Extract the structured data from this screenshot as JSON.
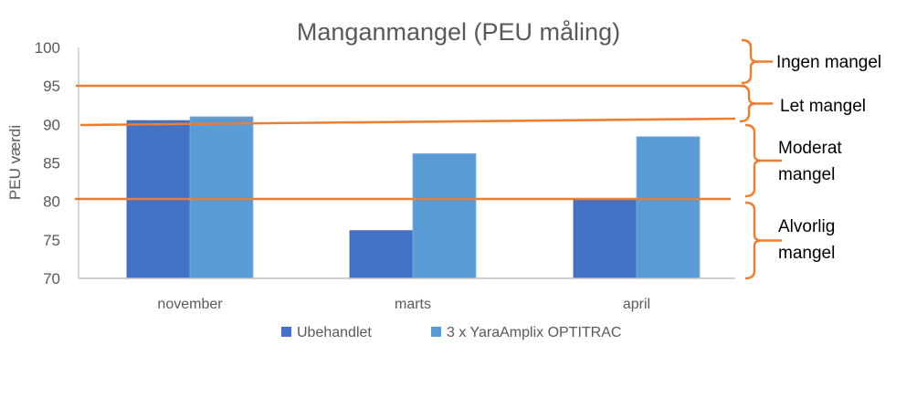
{
  "chart_data": {
    "type": "bar",
    "title": "Manganmangel (PEU måling)",
    "xlabel": "",
    "ylabel": "PEU værdi",
    "ylim": [
      70,
      100
    ],
    "yticks": [
      100,
      95,
      90,
      85,
      80,
      75,
      70
    ],
    "grid": false,
    "legend_position": "bottom",
    "categories": [
      "november",
      "marts",
      "april"
    ],
    "series": [
      {
        "name": "Ubehandlet",
        "color": "#4472C4",
        "values": [
          90.5,
          76.2,
          80.3
        ]
      },
      {
        "name": "3 x YaraAmplix OPTITRAC",
        "color": "#5B9BD5",
        "values": [
          91.0,
          86.2,
          88.4
        ]
      }
    ],
    "threshold_lines": [
      {
        "value": 95,
        "color": "#ED7D31"
      },
      {
        "value": 90,
        "color": "#ED7D31"
      },
      {
        "value": 80,
        "color": "#ED7D31"
      }
    ],
    "annotations": [
      {
        "label_lines": [
          "Ingen mangel"
        ],
        "range": [
          95,
          100
        ]
      },
      {
        "label_lines": [
          "Let mangel"
        ],
        "range": [
          90,
          95
        ]
      },
      {
        "label_lines": [
          "Moderat",
          "mangel"
        ],
        "range": [
          80,
          90
        ]
      },
      {
        "label_lines": [
          "Alvorlig",
          "mangel"
        ],
        "range": [
          70,
          80
        ]
      }
    ]
  },
  "colors": {
    "accent": "#ED7D31",
    "axis": "#BFBFBF",
    "text": "#595959"
  }
}
